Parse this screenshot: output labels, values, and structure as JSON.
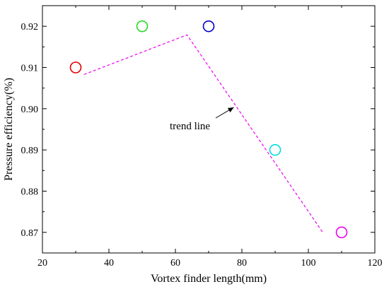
{
  "chart_data": {
    "type": "scatter",
    "title": "",
    "xlabel": "Vortex finder length(mm)",
    "ylabel": "Pressure efficiency(%)",
    "xlim": [
      20,
      120
    ],
    "ylim": [
      0.865,
      0.925
    ],
    "x_ticks": [
      20,
      40,
      60,
      80,
      100,
      120
    ],
    "y_ticks": [
      0.87,
      0.88,
      0.89,
      0.9,
      0.91,
      0.92
    ],
    "y_tick_labels": [
      "0.87",
      "0.88",
      "0.89",
      "0.90",
      "0.91",
      "0.92"
    ],
    "grid": false,
    "points": [
      {
        "x": 30,
        "y": 0.91,
        "color": "#e00000"
      },
      {
        "x": 50,
        "y": 0.92,
        "color": "#22dd22"
      },
      {
        "x": 70,
        "y": 0.92,
        "color": "#0000cc"
      },
      {
        "x": 90,
        "y": 0.89,
        "color": "#00dddd"
      },
      {
        "x": 110,
        "y": 0.87,
        "color": "#ee00ee"
      }
    ],
    "trend_line": {
      "color": "#ee00ee",
      "style": "dashed",
      "points": [
        [
          32.5,
          0.9083
        ],
        [
          63.5,
          0.9179
        ],
        [
          104.5,
          0.8698
        ]
      ]
    },
    "annotation": {
      "text": "trend line",
      "arrow_to": [
        78,
        0.9005
      ]
    }
  }
}
